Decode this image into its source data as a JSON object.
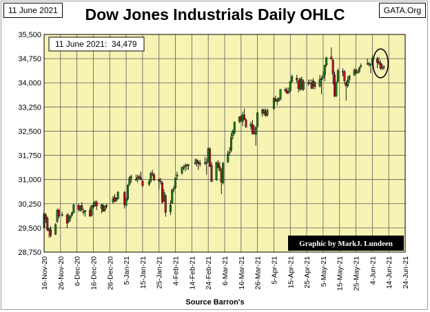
{
  "header": {
    "date_box": "11 June 2021",
    "source_box": "GATA.Org",
    "title": "Dow Jones Industrials Daily OHLC"
  },
  "annotations": {
    "last_close": "11 June 2021:  34,479",
    "credit": "Graphic by MarkJ. Lundeen"
  },
  "colors": {
    "plot_bg": "#f7f3b3",
    "up_candle": "#1a7a1a",
    "down_candle": "#b0112a",
    "grid": "#5a5a5a",
    "credit_bg": "#000000",
    "credit_text": "#ffffff"
  },
  "chart_data": {
    "type": "candlestick",
    "xlabel": "Source  Barron's",
    "ylim": [
      28750,
      35500
    ],
    "y_ticks": [
      28750,
      29500,
      30250,
      31000,
      31750,
      32500,
      33250,
      34000,
      34750,
      35500
    ],
    "y_tick_labels": [
      "28,750",
      "29,500",
      "30,250",
      "31,000",
      "31,750",
      "32,500",
      "33,250",
      "34,000",
      "34,750",
      "35,500"
    ],
    "x_tick_labels": [
      "16-Nov-20",
      "26-Nov-20",
      "6-Dec-20",
      "16-Dec-20",
      "26-Dec-20",
      "5-Jan-21",
      "15-Jan-21",
      "25-Jan-21",
      "4-Feb-21",
      "14-Feb-21",
      "24-Feb-21",
      "6-Mar-21",
      "16-Mar-21",
      "26-Mar-21",
      "5-Apr-21",
      "15-Apr-21",
      "25-Apr-21",
      "5-May-21",
      "15-May-21",
      "25-May-21",
      "4-Jun-21",
      "14-Jun-21",
      "24-Jun-21"
    ],
    "x_range": [
      "2020-11-16",
      "2021-06-24"
    ],
    "grid": true,
    "highlight": {
      "date": "2021-06-09",
      "note": "circled last days"
    },
    "ohlc": [
      [
        "2020-11-16",
        29500,
        29950,
        29400,
        29950
      ],
      [
        "2020-11-17",
        29900,
        29950,
        29650,
        29780
      ],
      [
        "2020-11-18",
        29800,
        29850,
        29400,
        29440
      ],
      [
        "2020-11-19",
        29400,
        29500,
        29200,
        29480
      ],
      [
        "2020-11-20",
        29450,
        29550,
        29200,
        29260
      ],
      [
        "2020-11-23",
        29300,
        29650,
        29280,
        29600
      ],
      [
        "2020-11-24",
        29700,
        30100,
        29650,
        30050
      ],
      [
        "2020-11-25",
        30050,
        30100,
        29800,
        29870
      ],
      [
        "2020-11-27",
        29900,
        30000,
        29850,
        29910
      ],
      [
        "2020-11-30",
        29900,
        29950,
        29500,
        29640
      ],
      [
        "2020-12-01",
        29700,
        29950,
        29650,
        29820
      ],
      [
        "2020-12-02",
        29800,
        29900,
        29700,
        29880
      ],
      [
        "2020-12-03",
        29900,
        30000,
        29850,
        29970
      ],
      [
        "2020-12-04",
        29970,
        30250,
        29950,
        30220
      ],
      [
        "2020-12-07",
        30200,
        30250,
        30000,
        30070
      ],
      [
        "2020-12-08",
        30050,
        30200,
        30000,
        30170
      ],
      [
        "2020-12-09",
        30200,
        30300,
        30000,
        30070
      ],
      [
        "2020-12-10",
        30000,
        30100,
        29900,
        30000
      ],
      [
        "2020-12-11",
        30000,
        30050,
        29850,
        30040
      ],
      [
        "2020-12-14",
        30050,
        30150,
        29850,
        29860
      ],
      [
        "2020-12-15",
        29900,
        30200,
        29850,
        30200
      ],
      [
        "2020-12-16",
        30200,
        30300,
        30100,
        30150
      ],
      [
        "2020-12-17",
        30200,
        30350,
        30150,
        30300
      ],
      [
        "2020-12-18",
        30300,
        30350,
        30050,
        30180
      ],
      [
        "2020-12-21",
        30100,
        30250,
        29950,
        30220
      ],
      [
        "2020-12-22",
        30200,
        30250,
        30000,
        30010
      ],
      [
        "2020-12-23",
        30050,
        30200,
        30000,
        30130
      ],
      [
        "2020-12-24",
        30150,
        30250,
        30100,
        30200
      ],
      [
        "2020-12-28",
        30300,
        30500,
        30250,
        30400
      ],
      [
        "2020-12-29",
        30450,
        30550,
        30300,
        30330
      ],
      [
        "2020-12-30",
        30350,
        30450,
        30300,
        30410
      ],
      [
        "2020-12-31",
        30400,
        30650,
        30380,
        30600
      ],
      [
        "2021-01-04",
        30600,
        30650,
        30100,
        30220
      ],
      [
        "2021-01-05",
        30200,
        30450,
        30150,
        30390
      ],
      [
        "2021-01-06",
        30400,
        30850,
        30350,
        30830
      ],
      [
        "2021-01-07",
        30850,
        31100,
        30800,
        31040
      ],
      [
        "2021-01-08",
        31050,
        31150,
        30900,
        31100
      ],
      [
        "2021-01-11",
        31000,
        31150,
        30950,
        31010
      ],
      [
        "2021-01-12",
        31000,
        31150,
        30900,
        31070
      ],
      [
        "2021-01-13",
        31100,
        31150,
        31000,
        31060
      ],
      [
        "2021-01-14",
        31050,
        31250,
        31000,
        30990
      ],
      [
        "2021-01-15",
        30950,
        31000,
        30750,
        30810
      ],
      [
        "2021-01-19",
        30850,
        31000,
        30800,
        30930
      ],
      [
        "2021-01-20",
        30950,
        31250,
        30900,
        31190
      ],
      [
        "2021-01-21",
        31200,
        31300,
        31100,
        31180
      ],
      [
        "2021-01-22",
        31150,
        31200,
        30950,
        30990
      ],
      [
        "2021-01-25",
        31000,
        31050,
        30700,
        30960
      ],
      [
        "2021-01-26",
        30950,
        31050,
        30850,
        30940
      ],
      [
        "2021-01-27",
        30900,
        30950,
        30250,
        30300
      ],
      [
        "2021-01-28",
        30350,
        30700,
        30300,
        30600
      ],
      [
        "2021-01-29",
        30500,
        30550,
        29850,
        29980
      ],
      [
        "2021-02-01",
        30000,
        30350,
        29900,
        30210
      ],
      [
        "2021-02-02",
        30250,
        30700,
        30250,
        30690
      ],
      [
        "2021-02-03",
        30700,
        30800,
        30600,
        30720
      ],
      [
        "2021-02-04",
        30750,
        31050,
        30700,
        31050
      ],
      [
        "2021-02-05",
        31100,
        31250,
        31000,
        31150
      ],
      [
        "2021-02-08",
        31200,
        31400,
        31150,
        31380
      ],
      [
        "2021-02-09",
        31350,
        31450,
        31300,
        31380
      ],
      [
        "2021-02-10",
        31400,
        31500,
        31250,
        31440
      ],
      [
        "2021-02-11",
        31450,
        31500,
        31300,
        31430
      ],
      [
        "2021-02-12",
        31450,
        31480,
        31300,
        31460
      ],
      [
        "2021-02-16",
        31500,
        31650,
        31450,
        31520
      ],
      [
        "2021-02-17",
        31500,
        31650,
        31400,
        31610
      ],
      [
        "2021-02-18",
        31550,
        31600,
        31300,
        31490
      ],
      [
        "2021-02-19",
        31500,
        31600,
        31400,
        31490
      ],
      [
        "2021-02-22",
        31500,
        31700,
        31450,
        31520
      ],
      [
        "2021-02-23",
        31500,
        31650,
        31150,
        31540
      ],
      [
        "2021-02-24",
        31550,
        32000,
        31550,
        31960
      ],
      [
        "2021-02-25",
        31950,
        32000,
        31400,
        31400
      ],
      [
        "2021-02-26",
        31450,
        31550,
        30950,
        30930
      ],
      [
        "2021-03-01",
        31000,
        31550,
        30950,
        31540
      ],
      [
        "2021-03-02",
        31500,
        31600,
        31350,
        31390
      ],
      [
        "2021-03-03",
        31400,
        31550,
        31250,
        31270
      ],
      [
        "2021-03-04",
        31250,
        31350,
        30550,
        30920
      ],
      [
        "2021-03-05",
        30900,
        31550,
        30850,
        31500
      ],
      [
        "2021-03-08",
        31550,
        31900,
        31500,
        31800
      ],
      [
        "2021-03-09",
        31850,
        32000,
        31750,
        31830
      ],
      [
        "2021-03-10",
        31900,
        32450,
        31850,
        32300
      ],
      [
        "2021-03-11",
        32350,
        32550,
        32250,
        32490
      ],
      [
        "2021-03-12",
        32450,
        32800,
        32400,
        32780
      ],
      [
        "2021-03-15",
        32800,
        32950,
        32750,
        32950
      ],
      [
        "2021-03-16",
        32950,
        33000,
        32750,
        32830
      ],
      [
        "2021-03-17",
        32800,
        33100,
        32650,
        33010
      ],
      [
        "2021-03-18",
        33000,
        33200,
        32850,
        32860
      ],
      [
        "2021-03-19",
        32850,
        32900,
        32600,
        32630
      ],
      [
        "2021-03-22",
        32650,
        32800,
        32550,
        32730
      ],
      [
        "2021-03-23",
        32700,
        32850,
        32400,
        32420
      ],
      [
        "2021-03-24",
        32450,
        32700,
        32400,
        32420
      ],
      [
        "2021-03-25",
        32400,
        32650,
        32050,
        32620
      ],
      [
        "2021-03-26",
        32650,
        33100,
        32600,
        33070
      ],
      [
        "2021-03-29",
        33050,
        33200,
        32950,
        33170
      ],
      [
        "2021-03-30",
        33150,
        33200,
        33000,
        33070
      ],
      [
        "2021-03-31",
        33100,
        33200,
        32950,
        32980
      ],
      [
        "2021-04-01",
        33000,
        33200,
        32950,
        33150
      ],
      [
        "2021-04-05",
        33200,
        33550,
        33150,
        33530
      ],
      [
        "2021-04-06",
        33500,
        33600,
        33400,
        33430
      ],
      [
        "2021-04-07",
        33450,
        33550,
        33300,
        33450
      ],
      [
        "2021-04-08",
        33450,
        33550,
        33400,
        33500
      ],
      [
        "2021-04-09",
        33500,
        33800,
        33450,
        33800
      ],
      [
        "2021-04-12",
        33800,
        33850,
        33700,
        33750
      ],
      [
        "2021-04-13",
        33750,
        33850,
        33650,
        33680
      ],
      [
        "2021-04-14",
        33700,
        33850,
        33650,
        33730
      ],
      [
        "2021-04-15",
        33750,
        34050,
        33700,
        34040
      ],
      [
        "2021-04-16",
        34050,
        34250,
        34000,
        34200
      ],
      [
        "2021-04-19",
        34150,
        34250,
        34000,
        34080
      ],
      [
        "2021-04-20",
        34050,
        34100,
        33700,
        33820
      ],
      [
        "2021-04-21",
        33800,
        34150,
        33750,
        34140
      ],
      [
        "2021-04-22",
        34100,
        34200,
        33750,
        33820
      ],
      [
        "2021-04-23",
        33800,
        34100,
        33750,
        34040
      ],
      [
        "2021-04-26",
        34000,
        34100,
        33900,
        33980
      ],
      [
        "2021-04-27",
        34000,
        34100,
        33950,
        33980
      ],
      [
        "2021-04-28",
        34000,
        34100,
        33850,
        33820
      ],
      [
        "2021-04-29",
        33900,
        34150,
        33800,
        34060
      ],
      [
        "2021-04-30",
        34000,
        34050,
        33800,
        33880
      ],
      [
        "2021-05-03",
        33900,
        34250,
        33850,
        34110
      ],
      [
        "2021-05-04",
        34100,
        34200,
        33650,
        34130
      ],
      [
        "2021-05-05",
        34150,
        34350,
        34100,
        34230
      ],
      [
        "2021-05-06",
        34250,
        34550,
        34050,
        34550
      ],
      [
        "2021-05-07",
        34550,
        34800,
        34500,
        34780
      ],
      [
        "2021-05-10",
        34800,
        35100,
        34700,
        34740
      ],
      [
        "2021-05-11",
        34700,
        34750,
        33950,
        34270
      ],
      [
        "2021-05-12",
        34250,
        34350,
        33550,
        33590
      ],
      [
        "2021-05-13",
        33600,
        34050,
        33550,
        34020
      ],
      [
        "2021-05-14",
        34050,
        34450,
        34000,
        34380
      ],
      [
        "2021-05-17",
        34350,
        34450,
        34200,
        34330
      ],
      [
        "2021-05-18",
        34350,
        34400,
        33950,
        34060
      ],
      [
        "2021-05-19",
        34000,
        34050,
        33450,
        33900
      ],
      [
        "2021-05-20",
        33900,
        34200,
        33850,
        34080
      ],
      [
        "2021-05-21",
        34100,
        34250,
        34000,
        34210
      ],
      [
        "2021-05-24",
        34250,
        34450,
        34200,
        34390
      ],
      [
        "2021-05-25",
        34400,
        34450,
        34250,
        34310
      ],
      [
        "2021-05-26",
        34320,
        34400,
        34300,
        34320
      ],
      [
        "2021-05-27",
        34350,
        34500,
        34300,
        34460
      ],
      [
        "2021-05-28",
        34500,
        34600,
        34450,
        34530
      ],
      [
        "2021-06-01",
        34600,
        34750,
        34550,
        34580
      ],
      [
        "2021-06-02",
        34600,
        34650,
        34500,
        34600
      ],
      [
        "2021-06-03",
        34550,
        34600,
        34300,
        34580
      ],
      [
        "2021-06-04",
        34600,
        34850,
        34550,
        34760
      ],
      [
        "2021-06-07",
        34750,
        34800,
        34450,
        34630
      ],
      [
        "2021-06-08",
        34650,
        34800,
        34550,
        34600
      ],
      [
        "2021-06-09",
        34600,
        34700,
        34400,
        34450
      ],
      [
        "2021-06-10",
        34450,
        34600,
        34400,
        34470
      ],
      [
        "2021-06-11",
        34500,
        34550,
        34400,
        34479
      ]
    ]
  }
}
